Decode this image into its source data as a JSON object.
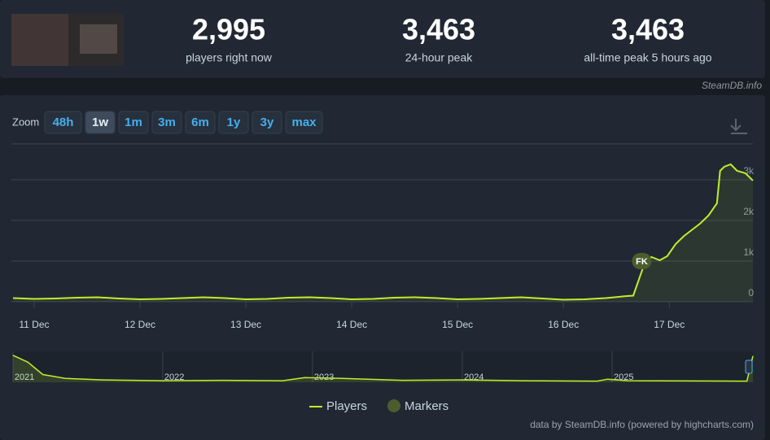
{
  "header": {
    "stats": [
      {
        "value": "2,995",
        "label": "players right now"
      },
      {
        "value": "3,463",
        "label": "24-hour peak"
      },
      {
        "value": "3,463",
        "label": "all-time peak 5 hours ago"
      }
    ],
    "source": "SteamDB.info"
  },
  "zoom": {
    "label": "Zoom",
    "buttons": [
      "48h",
      "1w",
      "1m",
      "3m",
      "6m",
      "1y",
      "3y",
      "max"
    ],
    "active": 1
  },
  "chart_data": {
    "type": "line",
    "x": [
      10.8,
      11.0,
      11.2,
      11.4,
      11.6,
      11.8,
      12.0,
      12.2,
      12.4,
      12.6,
      12.8,
      13.0,
      13.2,
      13.4,
      13.6,
      13.8,
      14.0,
      14.2,
      14.4,
      14.6,
      14.8,
      15.0,
      15.2,
      15.4,
      15.6,
      15.8,
      16.0,
      16.2,
      16.4,
      16.6,
      16.66,
      16.75,
      16.83,
      16.91,
      16.98,
      17.06,
      17.14,
      17.22,
      17.29,
      17.37,
      17.45,
      17.48,
      17.52,
      17.58,
      17.64,
      17.72,
      17.79
    ],
    "series": [
      {
        "name": "Players",
        "color": "#beef2a",
        "values": [
          90,
          70,
          80,
          100,
          110,
          80,
          60,
          70,
          90,
          110,
          90,
          60,
          70,
          100,
          110,
          90,
          60,
          70,
          100,
          110,
          90,
          60,
          70,
          90,
          110,
          80,
          50,
          60,
          90,
          140,
          150,
          820,
          1100,
          1020,
          1120,
          1420,
          1620,
          1780,
          1920,
          2120,
          2420,
          3220,
          3320,
          3380,
          3220,
          3160,
          2980
        ]
      }
    ],
    "xlim": [
      10.785,
      17.79
    ],
    "xticks": [
      {
        "value": 11,
        "label": "11 Dec"
      },
      {
        "value": 12,
        "label": "12 Dec"
      },
      {
        "value": 13,
        "label": "13 Dec"
      },
      {
        "value": 14,
        "label": "14 Dec"
      },
      {
        "value": 15,
        "label": "15 Dec"
      },
      {
        "value": 16,
        "label": "16 Dec"
      },
      {
        "value": 17,
        "label": "17 Dec"
      }
    ],
    "ylim": [
      0,
      3880
    ],
    "yticks": [
      0,
      {
        "value": 1000,
        "label": "1k"
      },
      {
        "value": 2000,
        "label": "2k"
      },
      {
        "value": 3000,
        "label": "3k"
      }
    ],
    "grid": true,
    "markers": {
      "name": "Markers",
      "color": "#4b5d2c",
      "points": [
        {
          "label": "FK",
          "x": 16.74,
          "y": 1000
        }
      ]
    },
    "navigator": {
      "x": [
        2021.0,
        2021.1,
        2021.2,
        2021.35,
        2021.6,
        2022.0,
        2022.4,
        2022.8,
        2022.95,
        2023.2,
        2023.6,
        2024.0,
        2024.4,
        2024.9,
        2024.97,
        2025.1,
        2025.9,
        2025.94
      ],
      "values": [
        3500,
        2600,
        1000,
        500,
        300,
        200,
        250,
        200,
        600,
        500,
        250,
        300,
        200,
        150,
        400,
        200,
        150,
        3400
      ],
      "xlim": [
        2020.99,
        2025.94
      ],
      "ylim": [
        0,
        4000
      ],
      "xticks": [
        2021,
        2022,
        2023,
        2024,
        2025
      ]
    }
  },
  "credits": "data by SteamDB.info (powered by highcharts.com)"
}
